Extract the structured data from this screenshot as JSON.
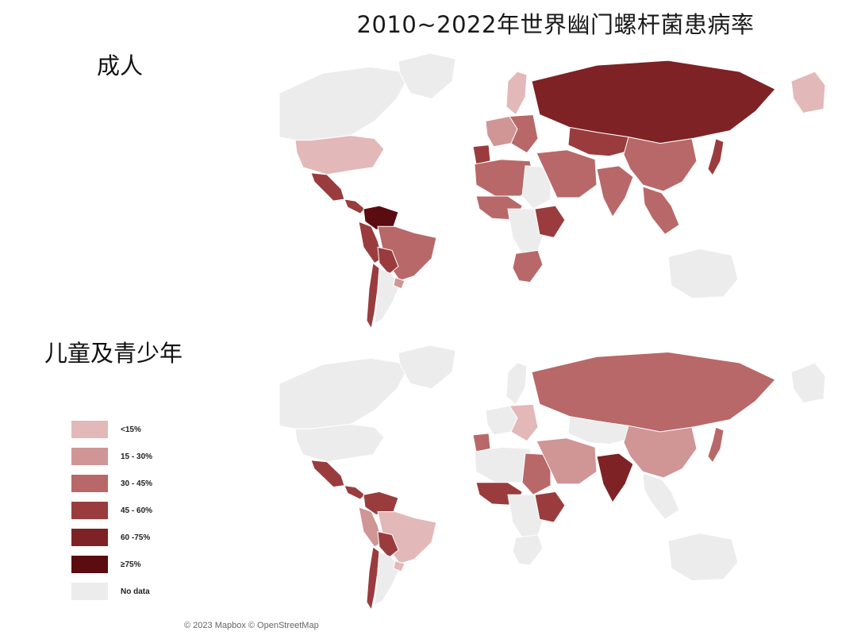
{
  "title": "2010~2022年世界幽门螺杆菌患病率",
  "maps": [
    {
      "label": "成人",
      "countries": [
        {
          "id": "canada",
          "category": "nodata"
        },
        {
          "id": "greenland",
          "category": "nodata"
        },
        {
          "id": "usa",
          "category": "lt15"
        },
        {
          "id": "alaska",
          "category": "lt15"
        },
        {
          "id": "mexico",
          "category": "45-60"
        },
        {
          "id": "central-america",
          "category": "45-60"
        },
        {
          "id": "colombia-venezuela",
          "category": "ge75"
        },
        {
          "id": "peru-ecuador",
          "category": "45-60"
        },
        {
          "id": "brazil",
          "category": "30-45"
        },
        {
          "id": "bolivia-paraguay",
          "category": "45-60"
        },
        {
          "id": "chile",
          "category": "45-60"
        },
        {
          "id": "argentina",
          "category": "nodata"
        },
        {
          "id": "uruguay",
          "category": "15-30"
        },
        {
          "id": "scandinavia",
          "category": "lt15"
        },
        {
          "id": "western-europe",
          "category": "15-30"
        },
        {
          "id": "eastern-europe",
          "category": "30-45"
        },
        {
          "id": "iberia",
          "category": "45-60"
        },
        {
          "id": "north-africa",
          "category": "30-45"
        },
        {
          "id": "sahara-east",
          "category": "nodata"
        },
        {
          "id": "west-africa",
          "category": "30-45"
        },
        {
          "id": "central-africa",
          "category": "nodata"
        },
        {
          "id": "ethiopia",
          "category": "45-60"
        },
        {
          "id": "southern-africa",
          "category": "30-45"
        },
        {
          "id": "middle-east",
          "category": "30-45"
        },
        {
          "id": "russia",
          "category": "60-75"
        },
        {
          "id": "central-asia",
          "category": "45-60"
        },
        {
          "id": "china",
          "category": "30-45"
        },
        {
          "id": "india",
          "category": "30-45"
        },
        {
          "id": "southeast-asia",
          "category": "30-45"
        },
        {
          "id": "japan",
          "category": "45-60"
        },
        {
          "id": "australia",
          "category": "nodata"
        }
      ]
    },
    {
      "label": "儿童及青少年",
      "countries": [
        {
          "id": "canada",
          "category": "nodata"
        },
        {
          "id": "greenland",
          "category": "nodata"
        },
        {
          "id": "usa",
          "category": "nodata"
        },
        {
          "id": "alaska",
          "category": "nodata"
        },
        {
          "id": "mexico",
          "category": "45-60"
        },
        {
          "id": "central-america",
          "category": "45-60"
        },
        {
          "id": "colombia-venezuela",
          "category": "45-60"
        },
        {
          "id": "peru-ecuador",
          "category": "15-30"
        },
        {
          "id": "brazil",
          "category": "lt15"
        },
        {
          "id": "bolivia-paraguay",
          "category": "45-60"
        },
        {
          "id": "chile",
          "category": "45-60"
        },
        {
          "id": "argentina",
          "category": "nodata"
        },
        {
          "id": "uruguay",
          "category": "lt15"
        },
        {
          "id": "scandinavia",
          "category": "nodata"
        },
        {
          "id": "western-europe",
          "category": "nodata"
        },
        {
          "id": "eastern-europe",
          "category": "lt15"
        },
        {
          "id": "iberia",
          "category": "30-45"
        },
        {
          "id": "north-africa",
          "category": "nodata"
        },
        {
          "id": "sahara-east",
          "category": "30-45"
        },
        {
          "id": "west-africa",
          "category": "45-60"
        },
        {
          "id": "central-africa",
          "category": "nodata"
        },
        {
          "id": "ethiopia",
          "category": "45-60"
        },
        {
          "id": "southern-africa",
          "category": "nodata"
        },
        {
          "id": "middle-east",
          "category": "15-30"
        },
        {
          "id": "russia",
          "category": "30-45"
        },
        {
          "id": "central-asia",
          "category": "nodata"
        },
        {
          "id": "china",
          "category": "15-30"
        },
        {
          "id": "india",
          "category": "60-75"
        },
        {
          "id": "southeast-asia",
          "category": "nodata"
        },
        {
          "id": "japan",
          "category": "30-45"
        },
        {
          "id": "australia",
          "category": "nodata"
        }
      ]
    }
  ],
  "legend": [
    {
      "key": "lt15",
      "label": "<15%",
      "color": "#e3b8b8"
    },
    {
      "key": "15-30",
      "label": "15 - 30%",
      "color": "#d09595"
    },
    {
      "key": "30-45",
      "label": "30 - 45%",
      "color": "#b86868"
    },
    {
      "key": "45-60",
      "label": "45 - 60%",
      "color": "#9a3c3e"
    },
    {
      "key": "60-75",
      "label": "60 -75%",
      "color": "#7e2226"
    },
    {
      "key": "ge75",
      "label": "≥75%",
      "color": "#5a0c10"
    },
    {
      "key": "nodata",
      "label": "No data",
      "color": "#ececec"
    }
  ],
  "attribution": "© 2023 Mapbox © OpenStreetMap"
}
